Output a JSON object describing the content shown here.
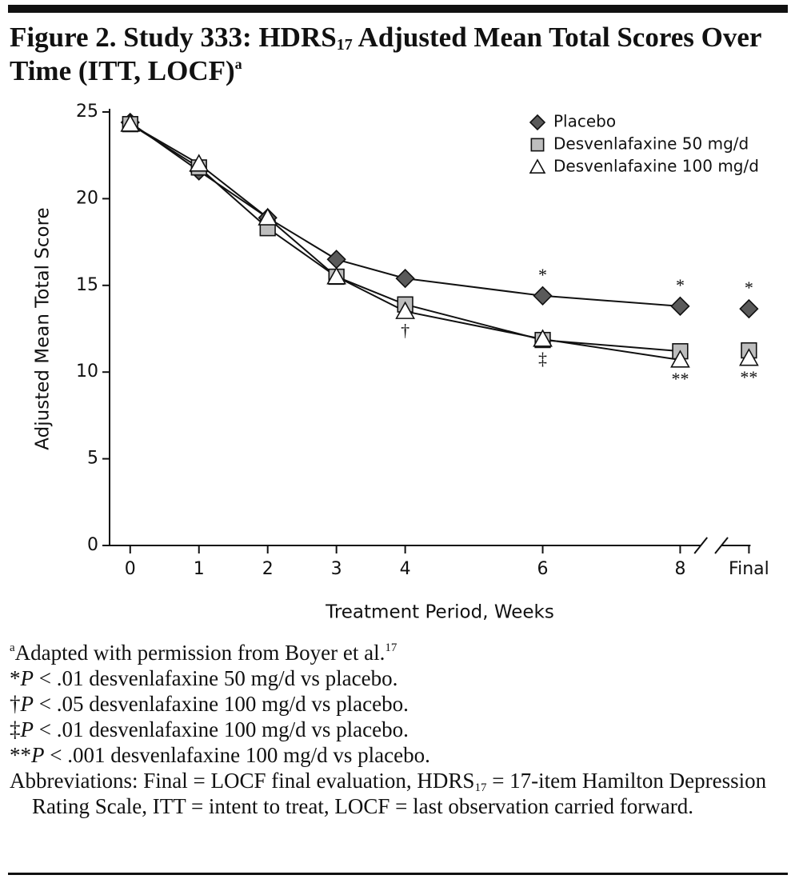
{
  "chart_data": {
    "type": "line",
    "title": [
      "Figure 2. Study 333: HDRS",
      "17",
      " Adjusted Mean Total Scores Over",
      "Time (ITT, LOCF)",
      "a"
    ],
    "xlabel": "Treatment Period, Weeks",
    "ylabel": "Adjusted Mean Total Score",
    "x": [
      0,
      1,
      2,
      3,
      4,
      6,
      8,
      9
    ],
    "xlim": [
      -0.3,
      9.1
    ],
    "xticks": [
      0,
      1,
      2,
      3,
      4,
      6,
      8,
      {
        "value": 9,
        "label": "Final"
      }
    ],
    "ylim": [
      0,
      25
    ],
    "yticks": [
      0,
      5,
      10,
      15,
      20,
      25
    ],
    "axis_break": true,
    "legend": "top-right",
    "series": [
      {
        "name": "Placebo",
        "marker": "diamond",
        "color": "#5a5a5a",
        "values": [
          24.4,
          21.6,
          18.9,
          16.5,
          15.4,
          14.4,
          13.8,
          13.65
        ]
      },
      {
        "name": "Desvenlafaxine 50 mg/d",
        "marker": "square",
        "color": "#bdbdbd",
        "values": [
          24.3,
          21.8,
          18.3,
          15.5,
          13.9,
          11.85,
          11.2,
          11.25
        ]
      },
      {
        "name": "Desvenlafaxine 100 mg/d",
        "marker": "triangle",
        "color": "#ffffff",
        "values": [
          24.3,
          22.0,
          18.9,
          15.5,
          13.5,
          11.9,
          10.7,
          10.8
        ]
      }
    ],
    "annotations": [
      {
        "text": "†",
        "x": 4,
        "side": "below"
      },
      {
        "text": "*",
        "x": 6,
        "side": "above"
      },
      {
        "text": "‡",
        "x": 6,
        "side": "below"
      },
      {
        "text": "*",
        "x": 8,
        "side": "above"
      },
      {
        "text": "**",
        "x": 8,
        "side": "below"
      },
      {
        "text": "*",
        "x": 9,
        "side": "above"
      },
      {
        "text": "**",
        "x": 9,
        "side": "below"
      }
    ]
  },
  "footnotes": [
    [
      "a",
      "Adapted with permission from Boyer et al.",
      "17"
    ],
    [
      "*",
      "P",
      " < .01 desvenlafaxine 50 mg/d vs placebo."
    ],
    [
      "†",
      "P",
      " < .05 desvenlafaxine 100 mg/d vs placebo."
    ],
    [
      "‡",
      "P",
      " < .01 desvenlafaxine 100 mg/d vs placebo."
    ],
    [
      "**",
      "P",
      " < .001 desvenlafaxine 100 mg/d vs placebo."
    ],
    [
      "Abbreviations: Final = LOCF final evaluation, HDRS",
      "17",
      " = 17-item Hamilton Depression Rating Scale, ITT = intent to treat, LOCF = last observation carried forward."
    ]
  ]
}
